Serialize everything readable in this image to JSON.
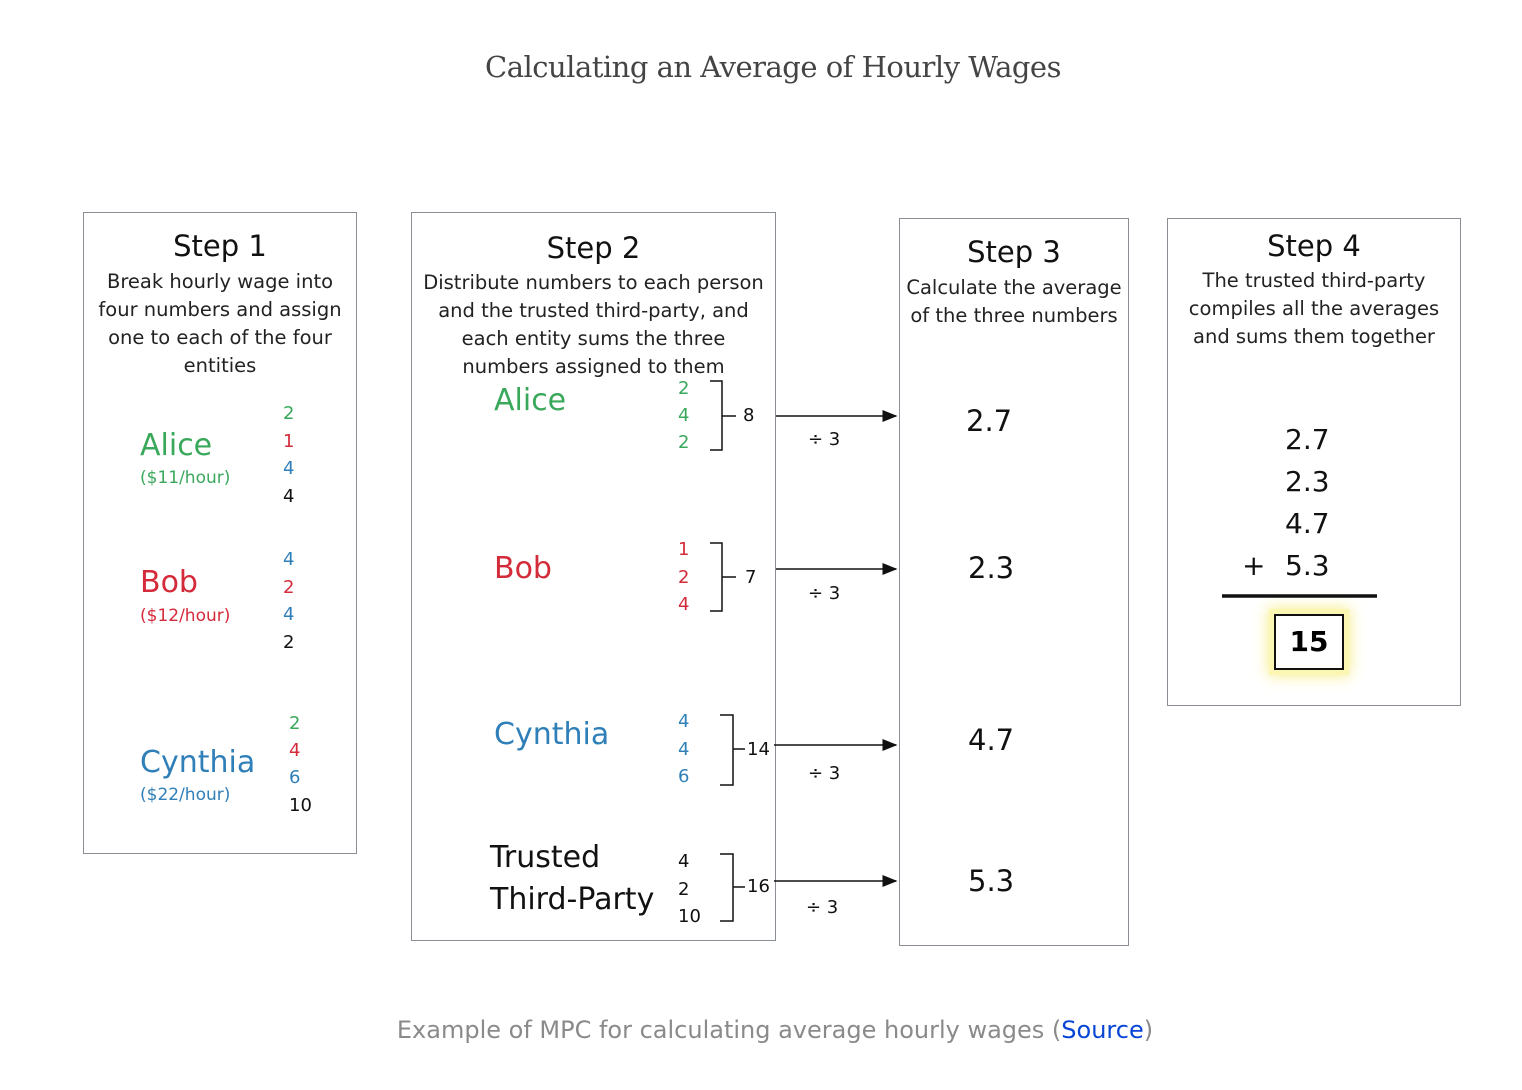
{
  "title": "Calculating an Average of Hourly Wages",
  "colors": {
    "alice": "#3aa85b",
    "bob": "#d42b3a",
    "cynthia": "#2f7fb8",
    "third_party": "#111111"
  },
  "step1": {
    "heading": "Step 1",
    "desc": [
      "Break hourly wage into",
      "four numbers and assign",
      "one to each of the four",
      "entities"
    ],
    "people": [
      {
        "name": "Alice",
        "rate": "($11/hour)",
        "shares": [
          "2",
          "1",
          "4",
          "4"
        ]
      },
      {
        "name": "Bob",
        "rate": "($12/hour)",
        "shares": [
          "4",
          "2",
          "4",
          "2"
        ]
      },
      {
        "name": "Cynthia",
        "rate": "($22/hour)",
        "shares": [
          "2",
          "4",
          "6",
          "10"
        ]
      }
    ]
  },
  "step2": {
    "heading": "Step 2",
    "desc": [
      "Distribute numbers to each person",
      "and the trusted third-party, and",
      "each entity sums the three",
      "numbers assigned to them"
    ],
    "entities": [
      {
        "name": "Alice",
        "numbers": [
          "2",
          "4",
          "2"
        ],
        "sum": "8",
        "divide": "÷ 3"
      },
      {
        "name": "Bob",
        "numbers": [
          "1",
          "2",
          "4"
        ],
        "sum": "7",
        "divide": "÷ 3"
      },
      {
        "name": "Cynthia",
        "numbers": [
          "4",
          "4",
          "6"
        ],
        "sum": "14",
        "divide": "÷ 3"
      },
      {
        "name_lines": [
          "Trusted",
          "Third-Party"
        ],
        "numbers": [
          "4",
          "2",
          "10"
        ],
        "sum": "16",
        "divide": "÷ 3"
      }
    ]
  },
  "step3": {
    "heading": "Step 3",
    "desc": [
      "Calculate the average",
      "of the three numbers"
    ],
    "averages": [
      "2.7",
      "2.3",
      "4.7",
      "5.3"
    ]
  },
  "step4": {
    "heading": "Step 4",
    "desc": [
      "The trusted third-party",
      "compiles all the averages",
      "and sums them together"
    ],
    "addends": [
      "2.7",
      "2.3",
      "4.7",
      "5.3"
    ],
    "plus_sign": "+",
    "result": "15"
  },
  "caption": {
    "text_before": "Example of MPC for calculating average hourly wages (",
    "link": "Source",
    "text_after": ")"
  }
}
